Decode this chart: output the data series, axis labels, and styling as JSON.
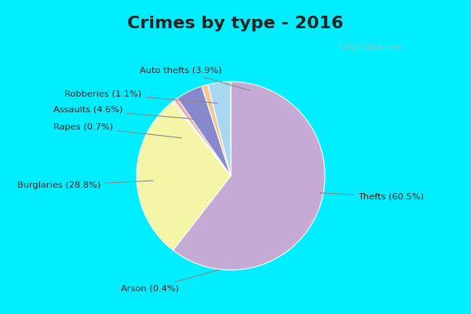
{
  "title": "Crimes by type - 2016",
  "title_fontsize": 16,
  "chart_bg": "#dff0e8",
  "title_bg": "#00eeff",
  "border_color": "#00eeff",
  "labels": [
    "Thefts",
    "Burglaries",
    "Arson",
    "Rapes",
    "Assaults",
    "Robberies",
    "Auto thefts"
  ],
  "pct_labels": [
    "60.5%",
    "28.8%",
    "0.4%",
    "0.7%",
    "4.6%",
    "1.1%",
    "3.9%"
  ],
  "values": [
    60.5,
    28.8,
    0.4,
    0.7,
    4.6,
    1.1,
    3.9
  ],
  "colors": [
    "#c5aad5",
    "#f5f5a8",
    "#f5f5a8",
    "#f0a8a8",
    "#8888cc",
    "#f0c898",
    "#a8d8f0"
  ],
  "startangle": 90,
  "figsize": [
    6.0,
    4.0
  ],
  "dpi": 100,
  "watermark": "City-Data.com"
}
